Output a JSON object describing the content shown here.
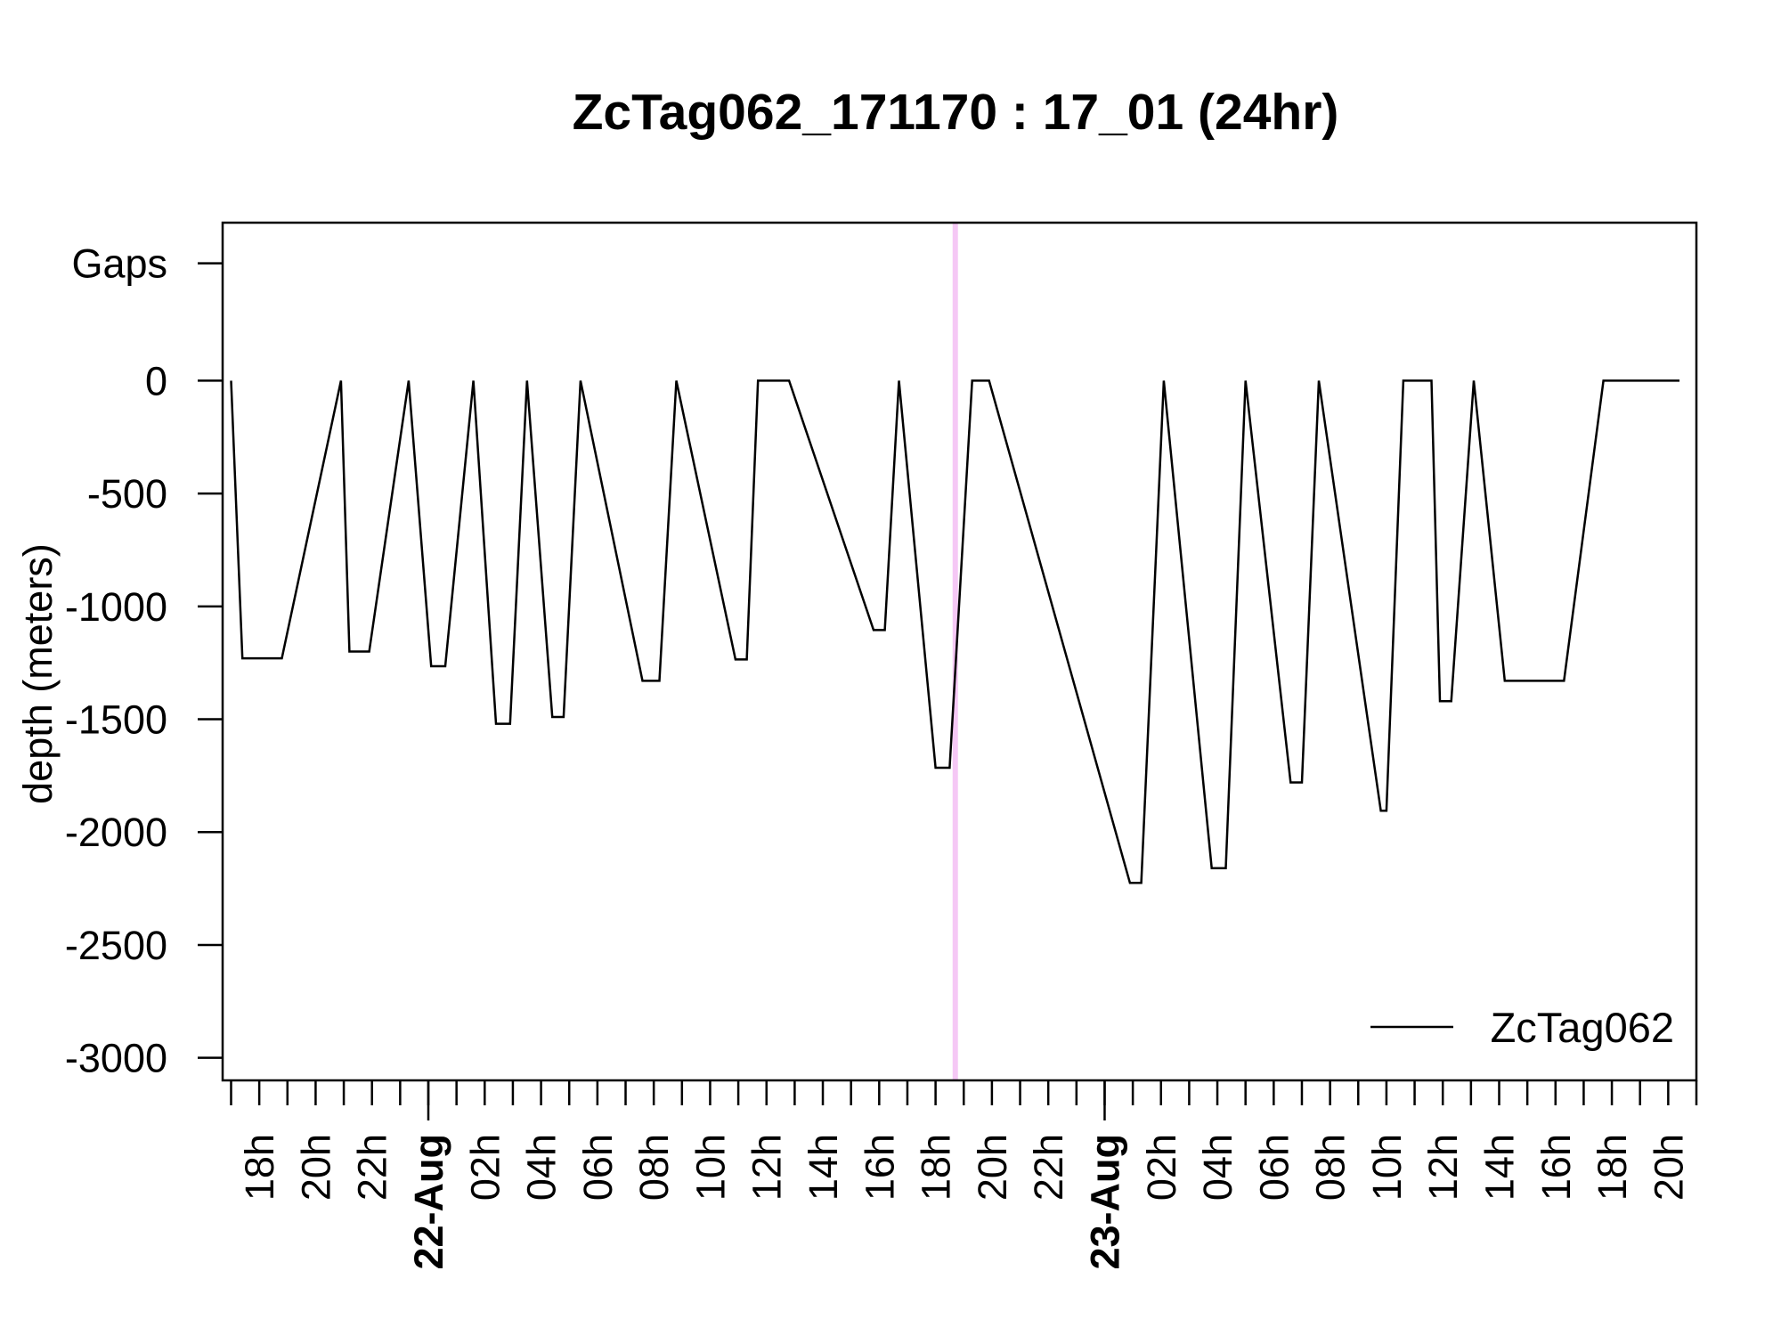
{
  "chart_data": {
    "type": "line",
    "title": "ZcTag062_171170  :  17_01   (24hr)",
    "xlabel": "",
    "ylabel": "depth (meters)",
    "ylim": [
      -3100,
      700
    ],
    "xlim_hours": [
      16.7,
      69.0
    ],
    "y_ticks": [
      {
        "value": 520,
        "label": "Gaps"
      },
      {
        "value": 0,
        "label": "0"
      },
      {
        "value": -500,
        "label": "-500"
      },
      {
        "value": -1000,
        "label": "-1000"
      },
      {
        "value": -1500,
        "label": "-1500"
      },
      {
        "value": -2000,
        "label": "-2000"
      },
      {
        "value": -2500,
        "label": "-2500"
      },
      {
        "value": -3000,
        "label": "-3000"
      }
    ],
    "x_ticks": [
      {
        "hour": 18,
        "label": "18h",
        "bold": false
      },
      {
        "hour": 20,
        "label": "20h",
        "bold": false
      },
      {
        "hour": 22,
        "label": "22h",
        "bold": false
      },
      {
        "hour": 24,
        "label": "22-Aug",
        "bold": true
      },
      {
        "hour": 26,
        "label": "02h",
        "bold": false
      },
      {
        "hour": 28,
        "label": "04h",
        "bold": false
      },
      {
        "hour": 30,
        "label": "06h",
        "bold": false
      },
      {
        "hour": 32,
        "label": "08h",
        "bold": false
      },
      {
        "hour": 34,
        "label": "10h",
        "bold": false
      },
      {
        "hour": 36,
        "label": "12h",
        "bold": false
      },
      {
        "hour": 38,
        "label": "14h",
        "bold": false
      },
      {
        "hour": 40,
        "label": "16h",
        "bold": false
      },
      {
        "hour": 42,
        "label": "18h",
        "bold": false
      },
      {
        "hour": 44,
        "label": "20h",
        "bold": false
      },
      {
        "hour": 46,
        "label": "22h",
        "bold": false
      },
      {
        "hour": 48,
        "label": "23-Aug",
        "bold": true
      },
      {
        "hour": 50,
        "label": "02h",
        "bold": false
      },
      {
        "hour": 52,
        "label": "04h",
        "bold": false
      },
      {
        "hour": 54,
        "label": "06h",
        "bold": false
      },
      {
        "hour": 56,
        "label": "08h",
        "bold": false
      },
      {
        "hour": 58,
        "label": "10h",
        "bold": false
      },
      {
        "hour": 60,
        "label": "12h",
        "bold": false
      },
      {
        "hour": 62,
        "label": "14h",
        "bold": false
      },
      {
        "hour": 64,
        "label": "16h",
        "bold": false
      },
      {
        "hour": 66,
        "label": "18h",
        "bold": false
      },
      {
        "hour": 68,
        "label": "20h",
        "bold": false
      }
    ],
    "reference_line": {
      "hour": 42.7,
      "color": "#f5c8f5"
    },
    "series": [
      {
        "name": "ZcTag062",
        "color": "#000000",
        "x_hours": [
          17.0,
          17.4,
          18.8,
          20.9,
          21.2,
          21.9,
          23.3,
          24.1,
          24.6,
          25.6,
          26.4,
          26.9,
          27.5,
          28.4,
          28.8,
          29.4,
          31.6,
          32.2,
          32.8,
          34.9,
          35.3,
          35.7,
          36.8,
          39.8,
          40.2,
          40.7,
          42.0,
          42.5,
          43.3,
          43.9,
          48.9,
          49.3,
          50.1,
          51.8,
          52.3,
          53.0,
          54.6,
          55.0,
          55.6,
          57.8,
          58.0,
          58.6,
          59.6,
          59.9,
          60.3,
          61.1,
          62.2,
          64.3,
          65.7,
          68.4
        ],
        "y_depth": [
          0,
          -1230,
          -1230,
          0,
          -1200,
          -1200,
          0,
          -1265,
          -1265,
          0,
          -1520,
          -1520,
          0,
          -1490,
          -1490,
          0,
          -1330,
          -1330,
          0,
          -1235,
          -1235,
          0,
          0,
          -1105,
          -1105,
          0,
          -1715,
          -1715,
          0,
          0,
          -2225,
          -2225,
          0,
          -2160,
          -2160,
          0,
          -1780,
          -1780,
          0,
          -1905,
          -1905,
          0,
          0,
          -1420,
          -1420,
          0,
          -1330,
          -1330,
          0,
          0
        ]
      }
    ],
    "legend": {
      "position": "bottom-right",
      "label": "ZcTag062"
    },
    "grid": false
  }
}
